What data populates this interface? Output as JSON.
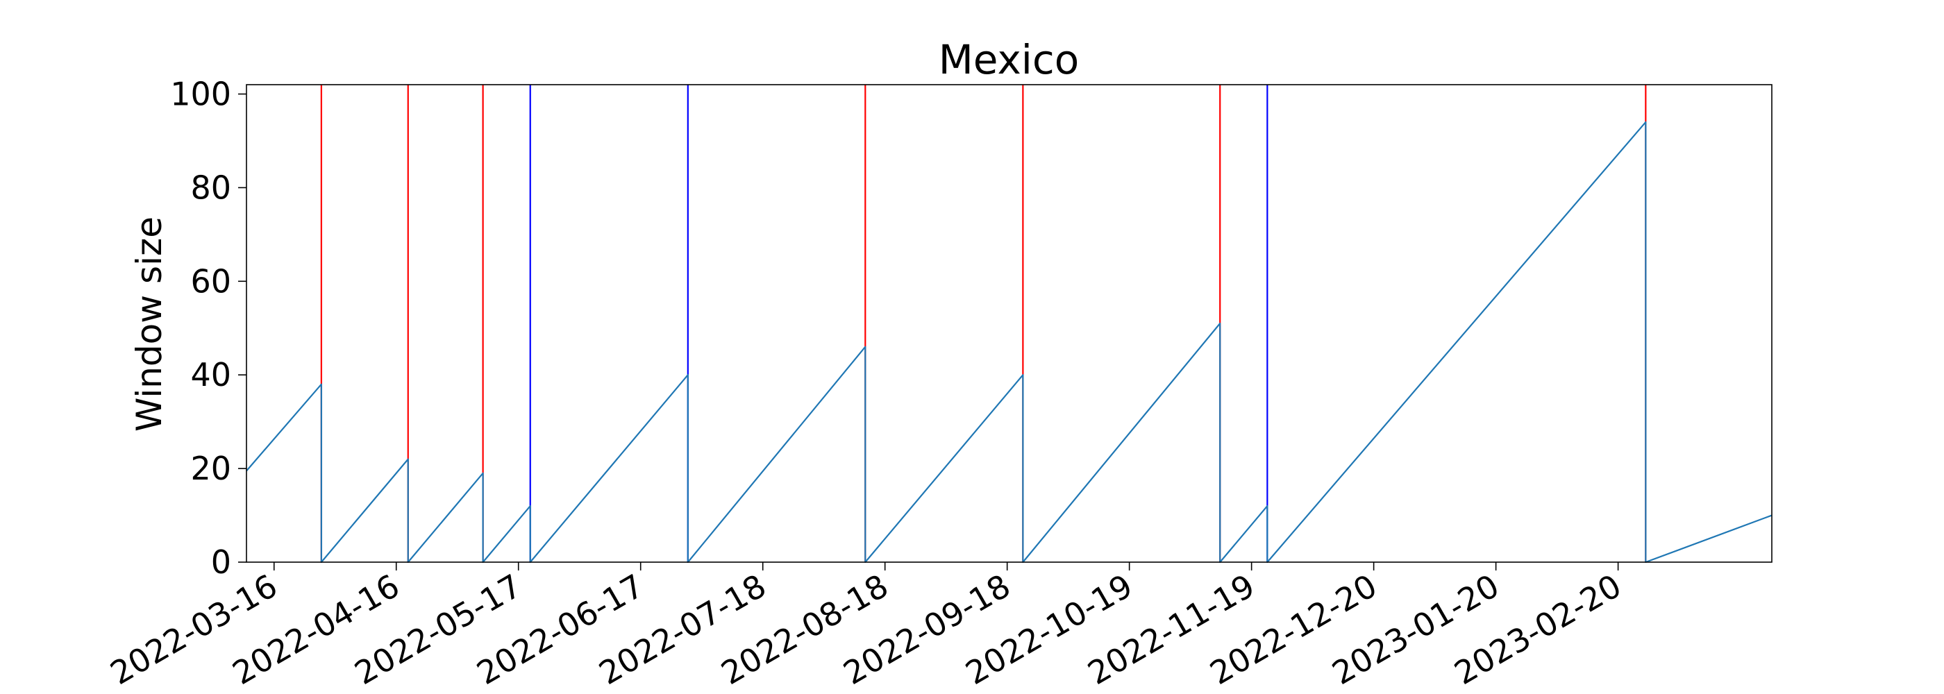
{
  "chart_data": {
    "type": "line",
    "title": "Mexico",
    "xlabel": "",
    "ylabel": "Window size",
    "ylim": [
      0,
      102
    ],
    "xlim": [
      "2022-03-09",
      "2023-03-31"
    ],
    "x_tick_labels": [
      "2022-03-16",
      "2022-04-16",
      "2022-05-17",
      "2022-06-17",
      "2022-07-18",
      "2022-08-18",
      "2022-09-18",
      "2022-10-19",
      "2022-11-19",
      "2022-12-20",
      "2023-01-20",
      "2023-02-20"
    ],
    "y_tick_labels": [
      "0",
      "20",
      "40",
      "60",
      "80",
      "100"
    ],
    "y_ticks": [
      0,
      20,
      40,
      60,
      80,
      100
    ],
    "grid": false,
    "series": [
      {
        "color": "#1f77b4",
        "points": [
          [
            "2022-03-09",
            19.5
          ],
          [
            "2022-03-28",
            38
          ],
          [
            "2022-03-28",
            0
          ],
          [
            "2022-04-19",
            22
          ],
          [
            "2022-04-19",
            0
          ],
          [
            "2022-05-08",
            19
          ],
          [
            "2022-05-08",
            0
          ],
          [
            "2022-05-20",
            12
          ],
          [
            "2022-05-20",
            0
          ],
          [
            "2022-06-29",
            40
          ],
          [
            "2022-06-29",
            0
          ],
          [
            "2022-08-13",
            46
          ],
          [
            "2022-08-13",
            0
          ],
          [
            "2022-09-22",
            40
          ],
          [
            "2022-09-22",
            0
          ],
          [
            "2022-11-11",
            51
          ],
          [
            "2022-11-11",
            0
          ],
          [
            "2022-11-23",
            12
          ],
          [
            "2022-11-23",
            0
          ],
          [
            "2023-02-27",
            94
          ],
          [
            "2023-02-27",
            0
          ],
          [
            "2023-03-31",
            10
          ]
        ]
      }
    ],
    "vertical_lines": [
      {
        "x": "2022-03-28",
        "color": "#ff0000"
      },
      {
        "x": "2022-04-19",
        "color": "#ff0000"
      },
      {
        "x": "2022-05-08",
        "color": "#ff0000"
      },
      {
        "x": "2022-05-20",
        "color": "#0000ff"
      },
      {
        "x": "2022-06-29",
        "color": "#0000ff"
      },
      {
        "x": "2022-08-13",
        "color": "#ff0000"
      },
      {
        "x": "2022-09-22",
        "color": "#ff0000"
      },
      {
        "x": "2022-11-11",
        "color": "#ff0000"
      },
      {
        "x": "2022-11-23",
        "color": "#0000ff"
      },
      {
        "x": "2023-02-27",
        "color": "#ff0000"
      }
    ]
  }
}
